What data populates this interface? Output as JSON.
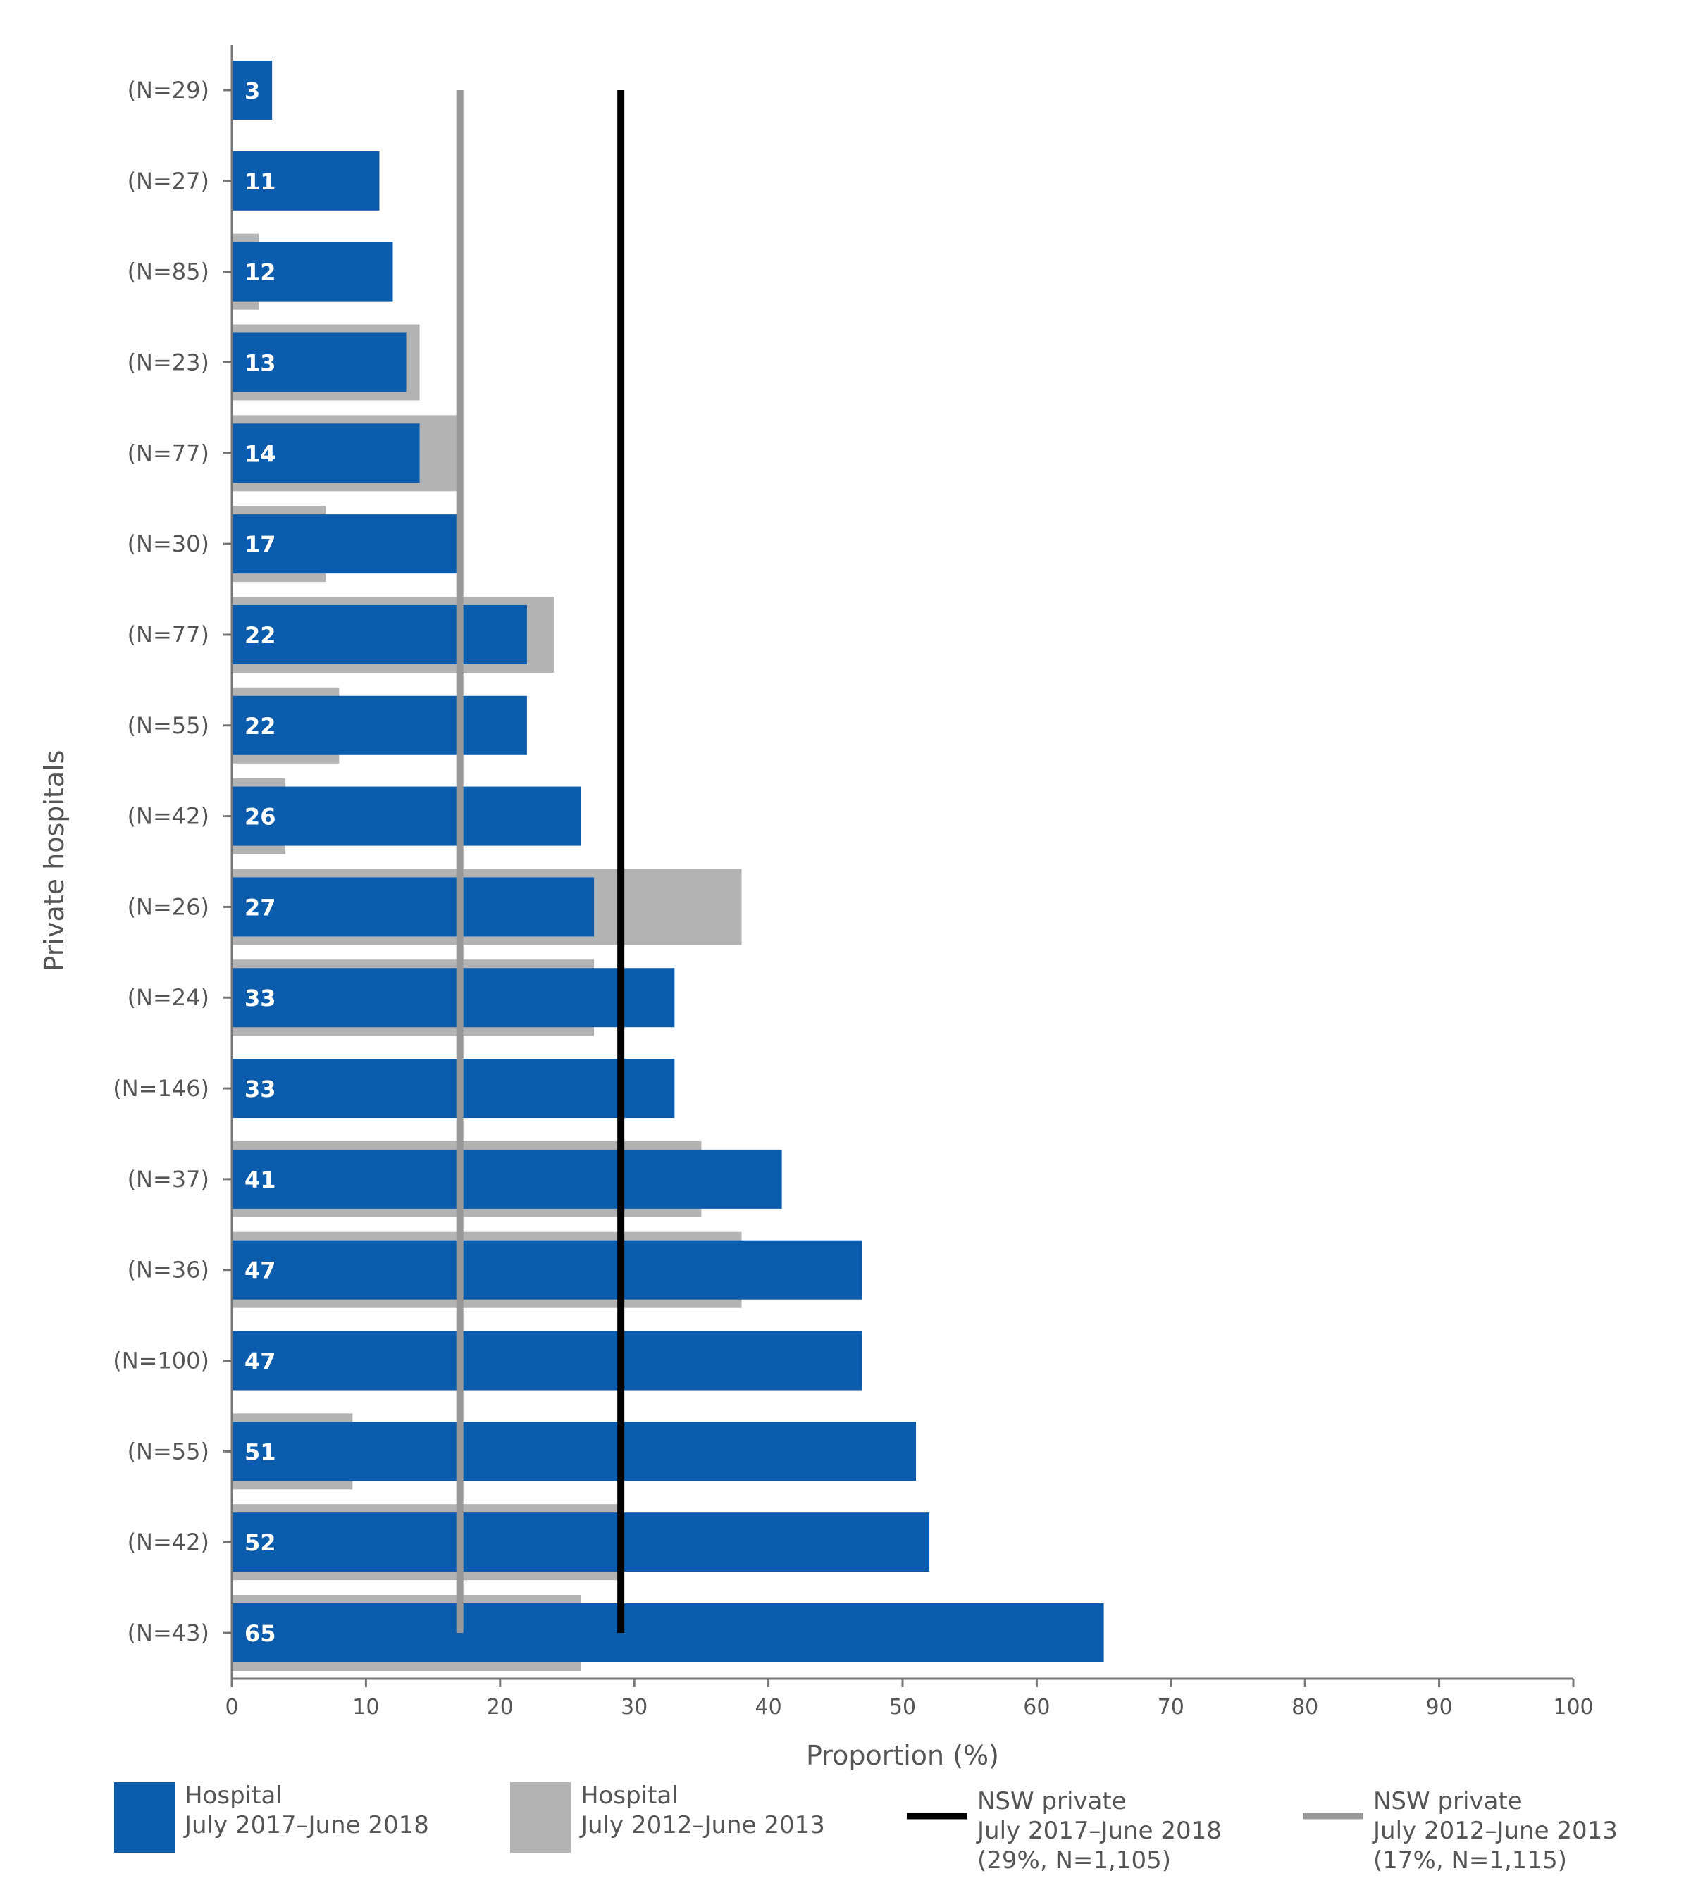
{
  "chart_data": {
    "type": "bar",
    "orientation": "horizontal",
    "xlabel": "Proportion (%)",
    "ylabel": "Private hospitals",
    "xlim": [
      0,
      100
    ],
    "xticks": [
      0,
      10,
      20,
      30,
      40,
      50,
      60,
      70,
      80,
      90,
      100
    ],
    "grid": false,
    "legend_position": "bottom",
    "categories": [
      "(N=29)",
      "(N=27)",
      "(N=85)",
      "(N=23)",
      "(N=77)",
      "(N=30)",
      "(N=77)",
      "(N=55)",
      "(N=42)",
      "(N=26)",
      "(N=24)",
      "(N=146)",
      "(N=37)",
      "(N=36)",
      "(N=100)",
      "(N=55)",
      "(N=42)",
      "(N=43)"
    ],
    "series": [
      {
        "name": "Hospital July 2017–June 2018",
        "color": "#0b5cad",
        "values": [
          3,
          11,
          12,
          13,
          14,
          17,
          22,
          22,
          26,
          27,
          33,
          33,
          41,
          47,
          47,
          51,
          52,
          65
        ],
        "data_labels": true
      },
      {
        "name": "Hospital July 2012–June 2013",
        "color": "#b3b3b3",
        "values": [
          null,
          null,
          2,
          14,
          17,
          7,
          24,
          8,
          4,
          38,
          27,
          null,
          35,
          38,
          null,
          9,
          29,
          26
        ]
      }
    ],
    "reference_lines": [
      {
        "name": "NSW private July 2017–June 2018 (29%, N=1,105)",
        "value": 29,
        "color": "#000000"
      },
      {
        "name": "NSW private July 2012–June 2013 (17%, N=1,115)",
        "value": 17,
        "color": "#999999"
      }
    ]
  },
  "legend": [
    {
      "line1": "Hospital",
      "line2": "July 2017–June 2018",
      "line3": "",
      "kind": "box",
      "color": "#0b5cad"
    },
    {
      "line1": "Hospital",
      "line2": "July 2012–June 2013",
      "line3": "",
      "kind": "box",
      "color": "#b3b3b3"
    },
    {
      "line1": "NSW private",
      "line2": "July 2017–June 2018",
      "line3": "(29%, N=1,105)",
      "kind": "line",
      "color": "#000000"
    },
    {
      "line1": "NSW private",
      "line2": "July 2012–June 2013",
      "line3": "(17%, N=1,115)",
      "kind": "line",
      "color": "#999999"
    }
  ]
}
